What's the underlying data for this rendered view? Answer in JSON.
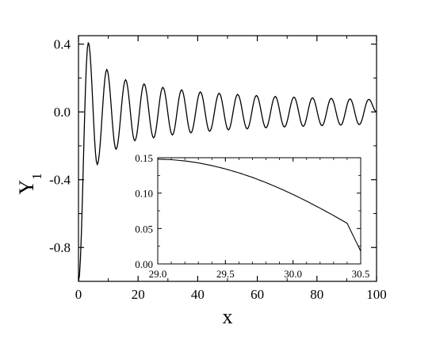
{
  "chart_data": [
    {
      "type": "line",
      "title": "",
      "xlabel": "x",
      "ylabel": "Y",
      "ylabel_subscript": "1",
      "xlim": [
        0,
        100
      ],
      "ylim": [
        -1.0,
        0.45
      ],
      "xticks": [
        0,
        20,
        40,
        60,
        80,
        100
      ],
      "xtick_labels": [
        "0",
        "20",
        "40",
        "60",
        "80",
        "100"
      ],
      "yticks": [
        0.4,
        0.0,
        -0.4,
        -0.8
      ],
      "ytick_labels": [
        "0.4",
        "0.0",
        "-0.4",
        "-0.8"
      ],
      "grid": false,
      "line_color": "#000000",
      "series": [
        {
          "x": [
            0.0,
            3.3,
            6.3,
            9.5,
            12.6,
            15.8,
            18.9,
            22.0,
            25.2,
            28.3,
            31.5,
            34.6,
            37.7,
            40.9,
            44.0,
            47.2,
            50.3,
            53.4,
            56.6,
            59.7,
            62.9,
            66.0,
            69.1,
            72.3,
            75.4,
            78.5,
            81.7,
            84.8,
            88.0,
            91.1,
            94.2,
            97.4,
            100.0
          ],
          "y": [
            -1.0,
            0.41,
            -0.31,
            0.25,
            -0.22,
            0.19,
            -0.17,
            0.165,
            -0.153,
            0.145,
            -0.136,
            0.13,
            -0.124,
            0.118,
            -0.114,
            0.11,
            -0.106,
            0.103,
            -0.1,
            0.097,
            -0.094,
            0.091,
            -0.089,
            0.087,
            -0.085,
            0.083,
            -0.081,
            0.08,
            -0.078,
            0.077,
            -0.075,
            0.074,
            0.0
          ]
        }
      ]
    },
    {
      "type": "line",
      "title": "",
      "xlabel": "",
      "ylabel": "",
      "xlim": [
        29.0,
        30.5
      ],
      "ylim": [
        0.0,
        0.15
      ],
      "xticks": [
        29.0,
        29.5,
        30.0,
        30.5
      ],
      "xtick_labels": [
        "29.0",
        "29.5",
        "30.0",
        "30.5"
      ],
      "yticks": [
        0.0,
        0.05,
        0.1,
        0.15
      ],
      "ytick_labels": [
        "0.00",
        "0.05",
        "0.10",
        "0.15"
      ],
      "grid": false,
      "line_color": "#000000",
      "series": [
        {
          "x": [
            29.0,
            29.1,
            29.2,
            29.3,
            29.4,
            29.5,
            29.6,
            29.7,
            29.8,
            29.9,
            30.0,
            30.1,
            30.2,
            30.3,
            30.4,
            30.5
          ],
          "y": [
            0.148,
            0.1472,
            0.1455,
            0.1427,
            0.1389,
            0.1342,
            0.1286,
            0.1222,
            0.1149,
            0.1068,
            0.0981,
            0.0887,
            0.0787,
            0.0683,
            0.0574,
            0.018
          ]
        }
      ]
    }
  ]
}
